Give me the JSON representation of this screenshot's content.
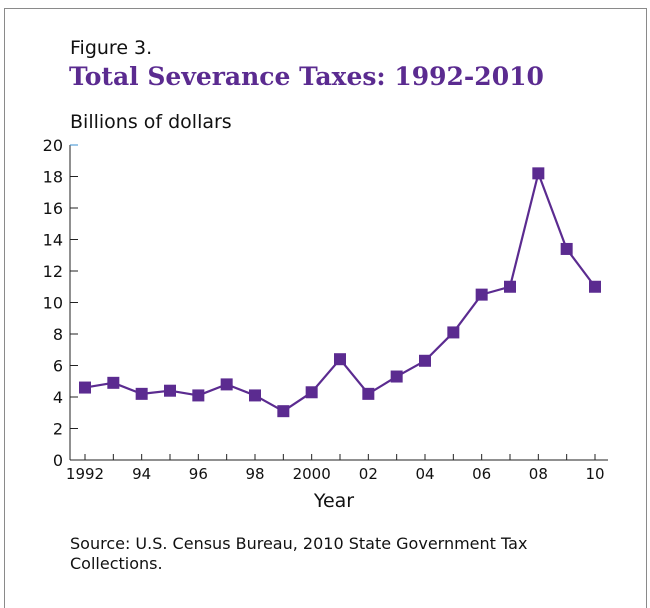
{
  "figure_label": "Figure 3.",
  "source_note": "Source: U.S. Census Bureau, 2010 State Government Tax Collections.",
  "chart_data": {
    "type": "line",
    "title": "Total Severance Taxes: 1992-2010",
    "ylabel": "Billions of dollars",
    "xlabel": "Year",
    "x": [
      1992,
      1993,
      1994,
      1995,
      1996,
      1997,
      1998,
      1999,
      2000,
      2001,
      2002,
      2003,
      2004,
      2005,
      2006,
      2007,
      2008,
      2009,
      2010
    ],
    "series": [
      {
        "values": [
          4.6,
          4.9,
          4.2,
          4.4,
          4.1,
          4.8,
          4.1,
          3.1,
          4.3,
          6.4,
          4.2,
          5.3,
          6.3,
          8.1,
          10.5,
          11.0,
          18.2,
          13.4,
          11.0
        ]
      }
    ],
    "xticks": [
      {
        "x": 1992,
        "label": "1992"
      },
      {
        "x": 1994,
        "label": "94"
      },
      {
        "x": 1996,
        "label": "96"
      },
      {
        "x": 1998,
        "label": "98"
      },
      {
        "x": 2000,
        "label": "2000"
      },
      {
        "x": 2002,
        "label": "02"
      },
      {
        "x": 2004,
        "label": "04"
      },
      {
        "x": 2006,
        "label": "06"
      },
      {
        "x": 2008,
        "label": "08"
      },
      {
        "x": 2010,
        "label": "10"
      }
    ],
    "yticks": [
      0,
      2,
      4,
      6,
      8,
      10,
      12,
      14,
      16,
      18,
      20
    ],
    "ylim": [
      0,
      20
    ],
    "xlim": [
      1992,
      2010
    ],
    "grid": false,
    "line_color": "#5b2b90",
    "marker": "square"
  }
}
